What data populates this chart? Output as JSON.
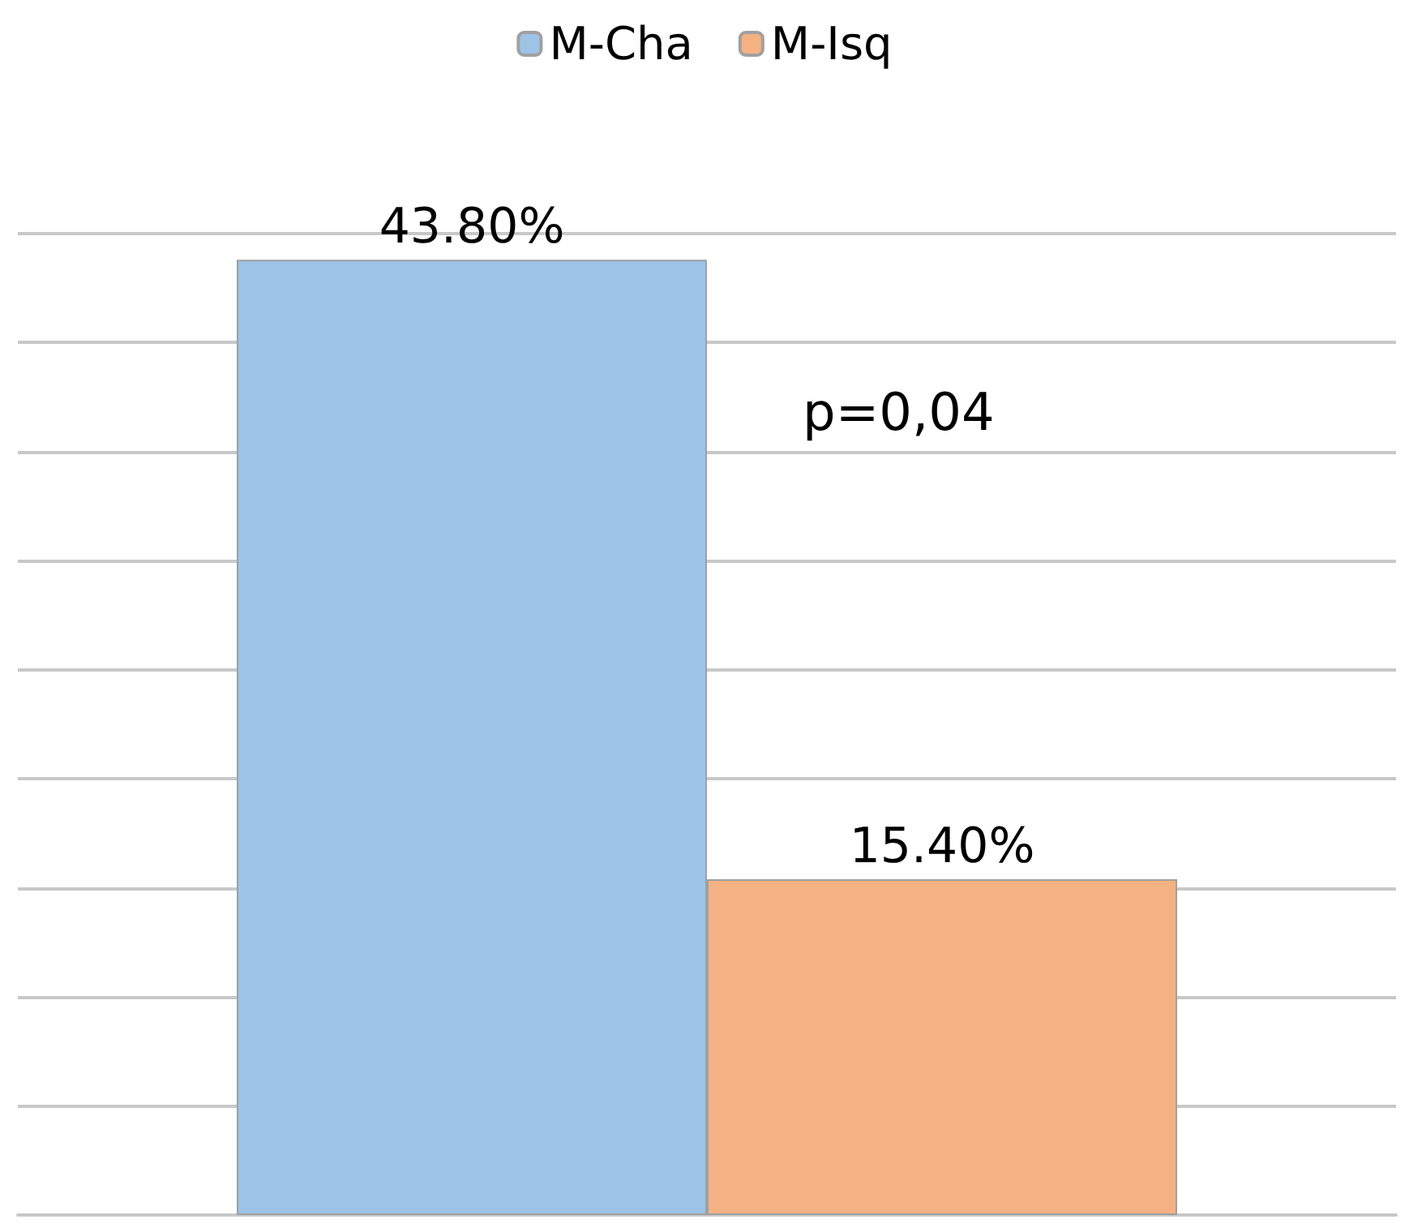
{
  "chart_data": {
    "type": "bar",
    "categories": [
      null
    ],
    "series": [
      {
        "name": "M-Cha",
        "color": "#9dc3e6",
        "values": [
          43.8
        ],
        "value_labels": [
          "43.80%"
        ]
      },
      {
        "name": "M-Isq",
        "color": "#f4b183",
        "values": [
          15.4
        ],
        "value_labels": [
          "15.40%"
        ]
      }
    ],
    "ylim": [
      0,
      45
    ],
    "yticks": [
      {
        "value": 0,
        "label": null
      },
      {
        "value": 5,
        "label": null
      },
      {
        "value": 10,
        "label": null
      },
      {
        "value": 15,
        "label": null
      },
      {
        "value": 20,
        "label": null
      },
      {
        "value": 25,
        "label": null
      },
      {
        "value": 30,
        "label": null
      },
      {
        "value": 35,
        "label": null
      },
      {
        "value": 40,
        "label": null
      },
      {
        "value": 45,
        "label": null
      }
    ],
    "grid": "y",
    "legend": "top",
    "annotations": [
      "p=0,04"
    ]
  }
}
